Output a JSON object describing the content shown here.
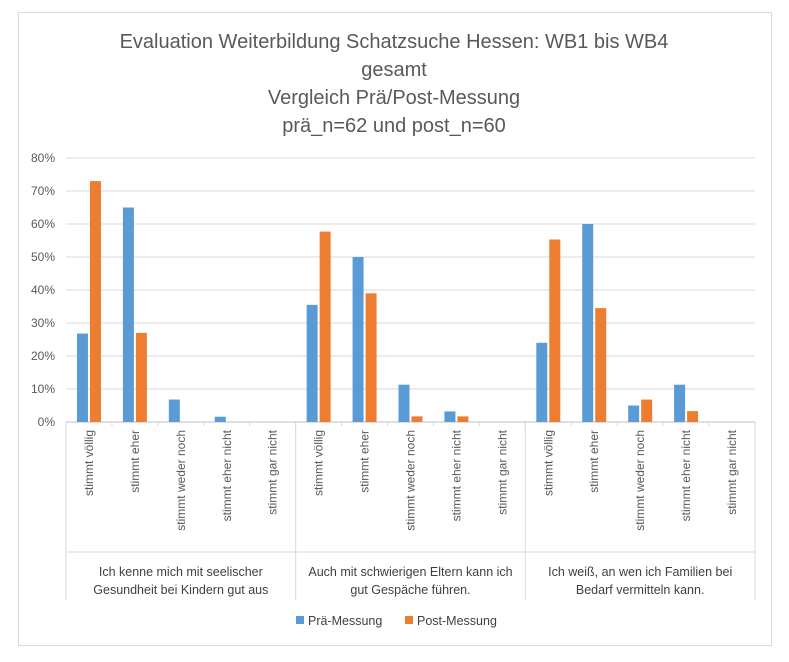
{
  "chart_data": {
    "type": "bar",
    "title_lines": [
      "Evaluation Weiterbildung  Schatzsuche Hessen: WB1 bis WB4",
      "gesamt",
      "Vergleich Prä/Post-Messung",
      "prä_n=62 und post_n=60"
    ],
    "ylim": [
      0,
      0.8
    ],
    "y_ticks": [
      "0%",
      "10%",
      "20%",
      "30%",
      "40%",
      "50%",
      "60%",
      "70%",
      "80%"
    ],
    "grid": true,
    "legend_position": "bottom",
    "groups": [
      {
        "label_lines": [
          "Ich kenne mich mit seelischer",
          "Gesundheit bei Kindern gut aus"
        ],
        "categories": [
          "stimmt völlig",
          "stimmt eher",
          "stimmt weder noch",
          "stimmt eher nicht",
          "stimmt gar nicht"
        ]
      },
      {
        "label_lines": [
          "Auch mit schwierigen Eltern kann ich",
          "gut Gespäche führen."
        ],
        "categories": [
          "stimmt völlig",
          "stimmt eher",
          "stimmt weder noch",
          "stimmt eher nicht",
          "stimmt gar nicht"
        ]
      },
      {
        "label_lines": [
          "Ich weiß, an wen ich Familien bei",
          "Bedarf vermitteln kann."
        ],
        "categories": [
          "stimmt völlig",
          "stimmt eher",
          "stimmt weder noch",
          "stimmt eher nicht",
          "stimmt gar nicht"
        ]
      }
    ],
    "series": [
      {
        "name": "Prä-Messung",
        "color": "#5b9bd5",
        "values": [
          0.268,
          0.65,
          0.068,
          0.016,
          0.0,
          0.355,
          0.5,
          0.113,
          0.032,
          0.0,
          0.24,
          0.6,
          0.05,
          0.113,
          0.0
        ]
      },
      {
        "name": "Post-Messung",
        "color": "#ed7d31",
        "values": [
          0.73,
          0.27,
          0.0,
          0.0,
          0.0,
          0.577,
          0.39,
          0.017,
          0.017,
          0.0,
          0.553,
          0.345,
          0.068,
          0.033,
          0.0
        ]
      }
    ]
  }
}
